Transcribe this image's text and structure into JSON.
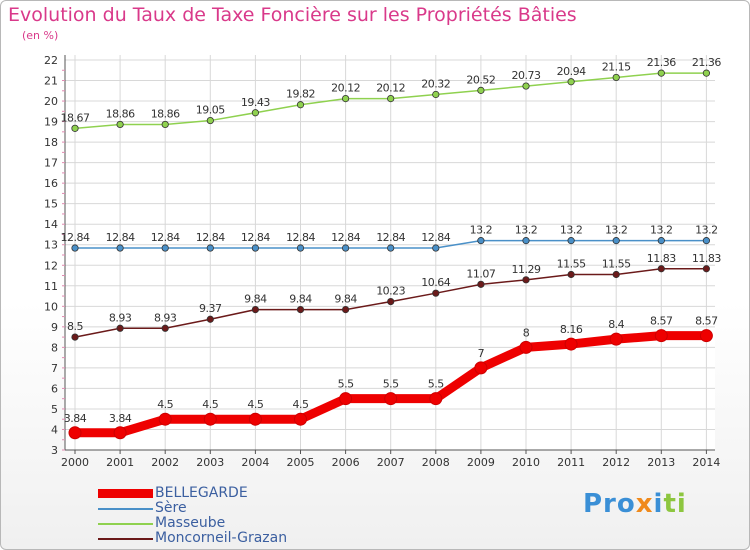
{
  "title": "Evolution du Taux de Taxe Foncière sur les Propriétés Bâties",
  "unit": "(en %)",
  "logo": {
    "parts": [
      {
        "text": "Pro",
        "color": "#3a8fd6"
      },
      {
        "text": "x",
        "color": "#f08a1c"
      },
      {
        "text": "i",
        "color": "#3a8fd6"
      },
      {
        "text": "ti",
        "color": "#8dc63f"
      }
    ]
  },
  "chart_data": {
    "type": "line",
    "categories": [
      "2000",
      "2001",
      "2002",
      "2003",
      "2004",
      "2005",
      "2006",
      "2007",
      "2008",
      "2009",
      "2010",
      "2011",
      "2012",
      "2013",
      "2014"
    ],
    "ylim": [
      3,
      22
    ],
    "yticks": [
      3,
      4,
      5,
      6,
      7,
      8,
      9,
      10,
      11,
      12,
      13,
      14,
      15,
      16,
      17,
      18,
      19,
      20,
      21,
      22
    ],
    "grid": true,
    "legend_position": "bottom-left",
    "series": [
      {
        "name": "BELLEGARDE",
        "color": "#ee0000",
        "values": [
          3.84,
          3.84,
          4.5,
          4.5,
          4.5,
          4.5,
          5.5,
          5.5,
          5.5,
          7,
          8,
          8.16,
          8.4,
          8.57,
          8.57
        ],
        "labels": [
          "3.84",
          "3.84",
          "4.5",
          "4.5",
          "4.5",
          "4.5",
          "5.5",
          "5.5",
          "5.5",
          "7",
          "8",
          "8.16",
          "8.4",
          "8.57",
          "8.57"
        ]
      },
      {
        "name": "Sère",
        "color": "#4a90c8",
        "values": [
          12.84,
          12.84,
          12.84,
          12.84,
          12.84,
          12.84,
          12.84,
          12.84,
          12.84,
          13.2,
          13.2,
          13.2,
          13.2,
          13.2,
          13.2
        ],
        "labels": [
          "12.84",
          "12.84",
          "12.84",
          "12.84",
          "12.84",
          "12.84",
          "12.84",
          "12.84",
          "12.84",
          "13.2",
          "13.2",
          "13.2",
          "13.2",
          "13.2",
          "13.2"
        ]
      },
      {
        "name": "Masseube",
        "color": "#8fd14f",
        "values": [
          18.67,
          18.86,
          18.86,
          19.05,
          19.43,
          19.82,
          20.12,
          20.12,
          20.32,
          20.52,
          20.73,
          20.94,
          21.15,
          21.36,
          21.36
        ],
        "labels": [
          "18.67",
          "18.86",
          "18.86",
          "19.05",
          "19.43",
          "19.82",
          "20.12",
          "20.12",
          "20.32",
          "20.52",
          "20.73",
          "20.94",
          "21.15",
          "21.36",
          "21.36"
        ]
      },
      {
        "name": "Moncorneil-Grazan",
        "color": "#6b1a1a",
        "values": [
          8.5,
          8.93,
          8.93,
          9.37,
          9.84,
          9.84,
          9.84,
          10.23,
          10.64,
          11.07,
          11.29,
          11.55,
          11.55,
          11.83,
          11.83
        ],
        "labels": [
          "8.5",
          "8.93",
          "8.93",
          "9.37",
          "9.84",
          "9.84",
          "9.84",
          "10.23",
          "10.64",
          "11.07",
          "11.29",
          "11.55",
          "11.55",
          "11.83",
          "11.83"
        ]
      }
    ]
  }
}
